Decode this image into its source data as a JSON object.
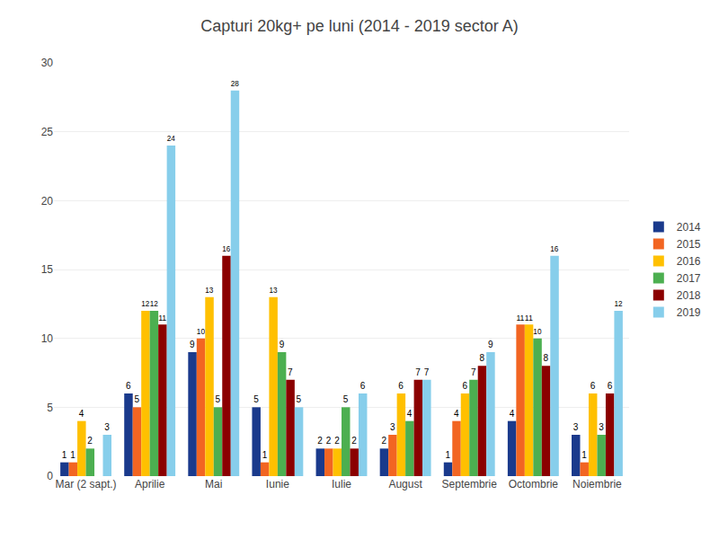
{
  "chart_data": {
    "type": "bar",
    "title": "Capturi 20kg+ pe luni (2014 - 2019 sector A)",
    "categories": [
      "Mar (2 sapt.)",
      "Aprilie",
      "Mai",
      "Iunie",
      "Iulie",
      "August",
      "Septembrie",
      "Octombrie",
      "Noiembrie"
    ],
    "series": [
      {
        "name": "2014",
        "color": "#1a3a8c",
        "values": [
          1,
          6,
          9,
          5,
          2,
          2,
          1,
          4,
          3
        ]
      },
      {
        "name": "2015",
        "color": "#f26522",
        "values": [
          1,
          5,
          10,
          1,
          2,
          3,
          4,
          11,
          1
        ]
      },
      {
        "name": "2016",
        "color": "#ffc000",
        "values": [
          4,
          12,
          13,
          13,
          2,
          6,
          6,
          11,
          6
        ]
      },
      {
        "name": "2017",
        "color": "#4caf50",
        "values": [
          2,
          12,
          5,
          9,
          5,
          4,
          7,
          10,
          3
        ]
      },
      {
        "name": "2018",
        "color": "#8b0000",
        "values": [
          0,
          11,
          16,
          7,
          2,
          7,
          8,
          8,
          6
        ],
        "value_labels": [
          null,
          "11",
          "16",
          "7",
          "2",
          "7",
          "8",
          "8",
          "6"
        ]
      },
      {
        "name": "2019",
        "color": "#87ceeb",
        "values": [
          3,
          24,
          28,
          5,
          6,
          7,
          9,
          16,
          12
        ]
      }
    ],
    "ylim": [
      0,
      30
    ],
    "yticks": [
      0,
      5,
      10,
      15,
      20,
      25,
      30
    ],
    "grid": true,
    "legend": "right",
    "data_labels": true
  }
}
